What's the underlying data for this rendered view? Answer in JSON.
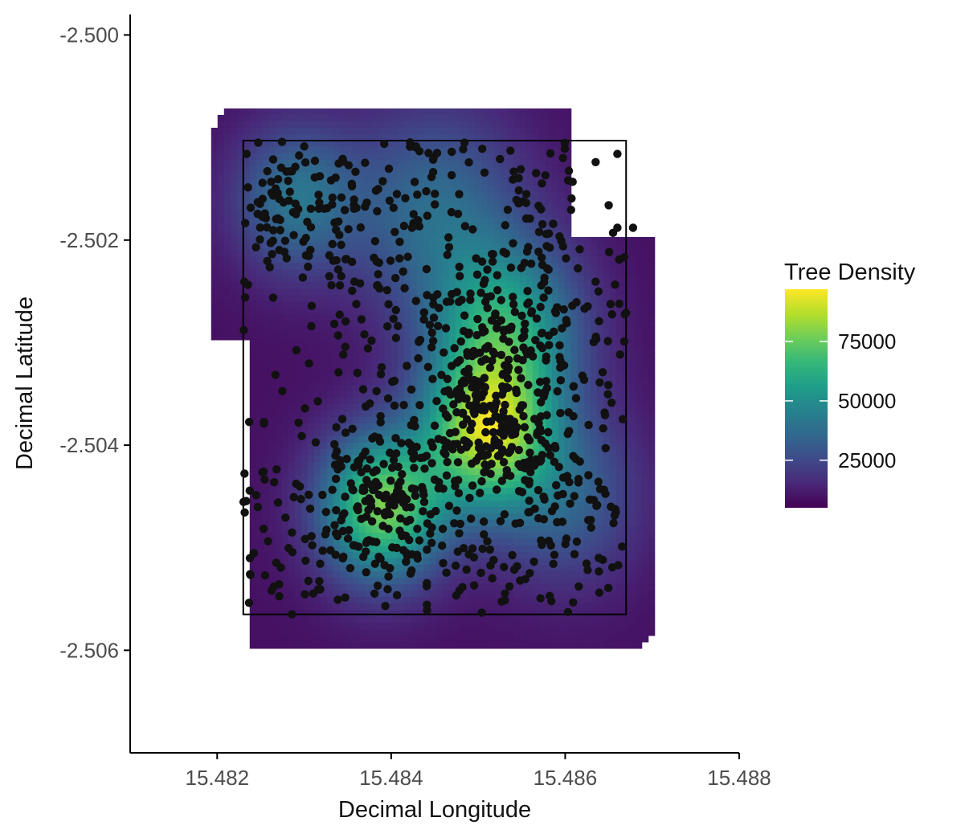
{
  "chart_data": {
    "type": "heatmap",
    "title": "",
    "xlabel": "Decimal Longitude",
    "ylabel": "Decimal Latitude",
    "xlim": [
      15.481,
      15.488
    ],
    "ylim": [
      -2.507,
      -2.4998
    ],
    "x_ticks": [
      15.482,
      15.484,
      15.486,
      15.488
    ],
    "x_tick_labels": [
      "15.482",
      "15.484",
      "15.486",
      "15.488"
    ],
    "y_ticks": [
      -2.5,
      -2.502,
      -2.504,
      -2.506
    ],
    "y_tick_labels": [
      "-2.500",
      "-2.502",
      "-2.504",
      "-2.506"
    ],
    "grid": false,
    "plot_boundary": {
      "lon": [
        15.4823,
        15.4867
      ],
      "lat": [
        -2.50565,
        -2.50103
      ]
    },
    "legend": {
      "title": "Tree Density",
      "placement": "right",
      "range": [
        5000,
        97000
      ],
      "ticks": [
        25000,
        50000,
        75000
      ],
      "tick_labels": [
        "25000",
        "50000",
        "75000"
      ],
      "colormap": [
        "#440154",
        "#482878",
        "#3e4a89",
        "#31688e",
        "#26828e",
        "#1f9e89",
        "#35b779",
        "#6ece58",
        "#b5de2b",
        "#fde725"
      ]
    },
    "density_hotspots": [
      {
        "lon": 15.4839,
        "lat": -2.5046,
        "weight": 1.0,
        "spread": 0.0005
      },
      {
        "lon": 15.4851,
        "lat": -2.5039,
        "weight": 1.0,
        "spread": 0.0005
      },
      {
        "lon": 15.4853,
        "lat": -2.5029,
        "weight": 0.75,
        "spread": 0.0006
      },
      {
        "lon": 15.4829,
        "lat": -2.5016,
        "weight": 0.45,
        "spread": 0.0005
      },
      {
        "lon": 15.4845,
        "lat": -2.5017,
        "weight": 0.4,
        "spread": 0.0007
      },
      {
        "lon": 15.486,
        "lat": -2.5045,
        "weight": 0.35,
        "spread": 0.0006
      }
    ],
    "point_style": {
      "color": "#111111"
    },
    "outlier_points": [
      {
        "lon": 15.48635,
        "lat": -2.50124
      },
      {
        "lon": 15.4866,
        "lat": -2.50116
      },
      {
        "lon": 15.4865,
        "lat": -2.50166
      },
      {
        "lon": 15.4866,
        "lat": -2.50188
      },
      {
        "lon": 15.48655,
        "lat": -2.50193
      },
      {
        "lon": 15.48678,
        "lat": -2.50188
      },
      {
        "lon": 15.48255,
        "lat": -2.50527
      },
      {
        "lon": 15.48265,
        "lat": -2.50538
      }
    ]
  }
}
